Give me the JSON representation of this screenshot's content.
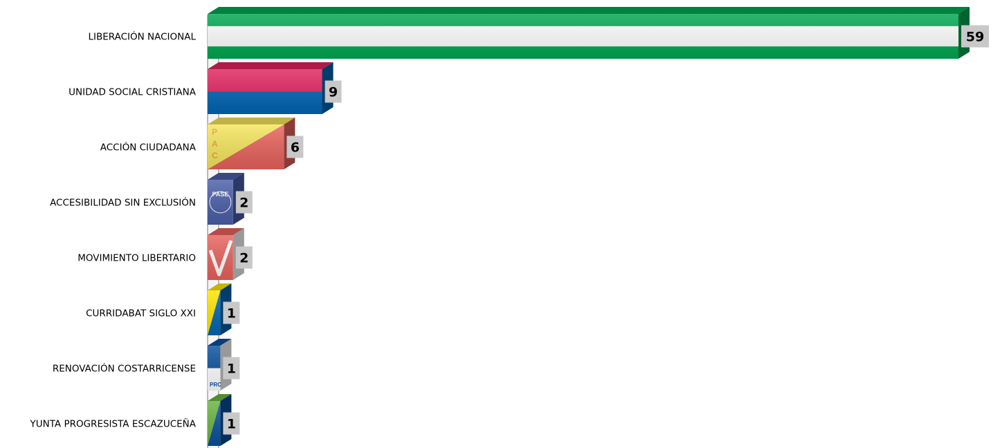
{
  "chart_data": {
    "type": "bar",
    "orientation": "horizontal",
    "style": "3d",
    "categories": [
      "LIBERACIÓN NACIONAL",
      "UNIDAD SOCIAL CRISTIANA",
      "ACCIÓN CIUDADANA",
      "ACCESIBILIDAD SIN EXCLUSIÓN",
      "MOVIMIENTO LIBERTARIO",
      "CURRIDABAT SIGLO XXI",
      "RENOVACIÓN COSTARRICENSE",
      "YUNTA PROGRESISTA ESCAZUCEÑA"
    ],
    "values": [
      59,
      9,
      6,
      2,
      2,
      1,
      1,
      1
    ],
    "xlim": [
      0,
      59
    ],
    "grid": false,
    "legend": "none",
    "bar_styles": [
      {
        "pattern": "stripes",
        "colors": [
          "#00a650",
          "#ffffff",
          "#00a650"
        ]
      },
      {
        "pattern": "two-band",
        "colors": [
          "#e0245e",
          "#0065b3"
        ]
      },
      {
        "pattern": "diagonal",
        "colors": [
          "#f5e65c",
          "#e8625c"
        ],
        "text": "PAC"
      },
      {
        "pattern": "badge",
        "colors": [
          "#4a5ea8"
        ],
        "text": "PASE"
      },
      {
        "pattern": "check",
        "colors": [
          "#e8625c",
          "#ffffff"
        ]
      },
      {
        "pattern": "diagonal",
        "colors": [
          "#ffe600",
          "#0065b3"
        ]
      },
      {
        "pattern": "two-band",
        "colors": [
          "#0a4f9c",
          "#ffffff"
        ],
        "text": "PRC"
      },
      {
        "pattern": "diagonal",
        "colors": [
          "#6ab33f",
          "#0a4f9c"
        ]
      }
    ],
    "label_box_color": "#c8c8c8"
  }
}
